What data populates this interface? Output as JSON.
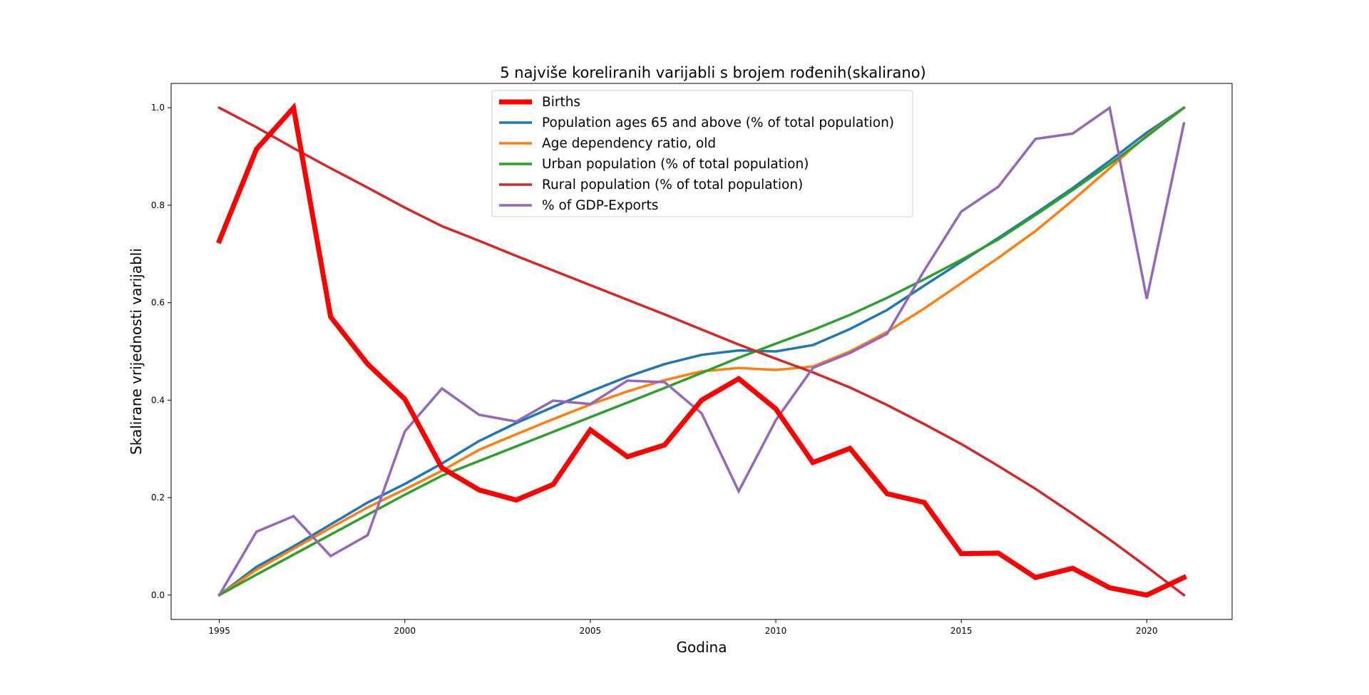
{
  "chart_data": {
    "type": "line",
    "title": "5 najviše koreliranih varijabli s brojem rođenih(skalirano)",
    "xlabel": "Godina",
    "ylabel": "Skalirane vrijednosti varijabli",
    "xlim": [
      1993.7,
      2022.3
    ],
    "ylim": [
      -0.05,
      1.05
    ],
    "xticks": [
      1995,
      2000,
      2005,
      2010,
      2015,
      2020
    ],
    "yticks": [
      0.0,
      0.2,
      0.4,
      0.6,
      0.8,
      1.0
    ],
    "ytick_labels": [
      "0.0",
      "0.2",
      "0.4",
      "0.6",
      "0.8",
      "1.0"
    ],
    "legend_position": "upper-center",
    "grid": false,
    "x": [
      1995,
      1996,
      1997,
      1998,
      1999,
      2000,
      2001,
      2002,
      2003,
      2004,
      2005,
      2006,
      2007,
      2008,
      2009,
      2010,
      2011,
      2012,
      2013,
      2014,
      2015,
      2016,
      2017,
      2018,
      2019,
      2020,
      2021
    ],
    "series": [
      {
        "name": "Births",
        "color": "#ff0000",
        "emphasis": true,
        "values": [
          0.727,
          0.915,
          1.0,
          0.571,
          0.474,
          0.402,
          0.261,
          0.216,
          0.195,
          0.227,
          0.339,
          0.284,
          0.308,
          0.4,
          0.444,
          0.382,
          0.272,
          0.301,
          0.208,
          0.19,
          0.085,
          0.086,
          0.036,
          0.055,
          0.015,
          0.0,
          0.036
        ]
      },
      {
        "name": "Population ages 65 and above (% of total population)",
        "color": "#1f77b4",
        "values": [
          0.0,
          0.058,
          0.1,
          0.145,
          0.19,
          0.228,
          0.27,
          0.316,
          0.353,
          0.386,
          0.418,
          0.448,
          0.474,
          0.493,
          0.502,
          0.5,
          0.513,
          0.546,
          0.585,
          0.635,
          0.684,
          0.733,
          0.783,
          0.835,
          0.891,
          0.949,
          1.0
        ]
      },
      {
        "name": "Age dependency ratio, old",
        "color": "#ff7f0e",
        "values": [
          0.0,
          0.052,
          0.095,
          0.138,
          0.18,
          0.217,
          0.255,
          0.298,
          0.33,
          0.361,
          0.391,
          0.418,
          0.441,
          0.459,
          0.466,
          0.462,
          0.469,
          0.5,
          0.54,
          0.588,
          0.64,
          0.692,
          0.747,
          0.81,
          0.876,
          0.943,
          1.0
        ]
      },
      {
        "name": "Urban population (% of total population)",
        "color": "#2ca02c",
        "values": [
          0.0,
          0.042,
          0.083,
          0.124,
          0.165,
          0.206,
          0.245,
          0.275,
          0.305,
          0.335,
          0.365,
          0.395,
          0.425,
          0.456,
          0.487,
          0.516,
          0.544,
          0.575,
          0.61,
          0.648,
          0.688,
          0.73,
          0.78,
          0.831,
          0.884,
          0.941,
          1.0
        ]
      },
      {
        "name": "Rural population (% of total population)",
        "color": "#d62728",
        "values": [
          1.0,
          0.96,
          0.917,
          0.876,
          0.836,
          0.795,
          0.757,
          0.727,
          0.696,
          0.666,
          0.636,
          0.606,
          0.576,
          0.545,
          0.514,
          0.485,
          0.457,
          0.426,
          0.39,
          0.351,
          0.31,
          0.265,
          0.218,
          0.167,
          0.114,
          0.058,
          0.0
        ]
      },
      {
        "name": "% of GDP-Exports",
        "color": "#9467bd",
        "values": [
          0.0,
          0.13,
          0.162,
          0.08,
          0.123,
          0.336,
          0.424,
          0.37,
          0.356,
          0.399,
          0.392,
          0.44,
          0.437,
          0.373,
          0.213,
          0.359,
          0.466,
          0.497,
          0.536,
          0.666,
          0.787,
          0.838,
          0.936,
          0.947,
          1.0,
          0.608,
          0.968
        ]
      }
    ]
  }
}
